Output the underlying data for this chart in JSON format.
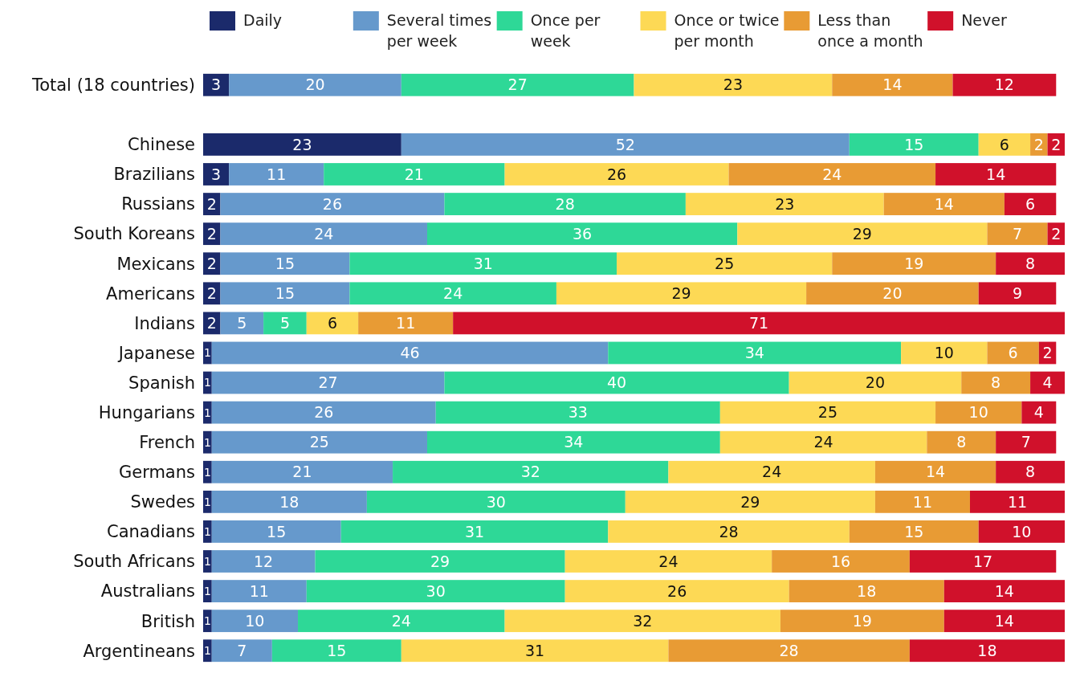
{
  "chart_data": {
    "type": "bar",
    "orientation": "horizontal",
    "stacked": true,
    "data_labels": true,
    "legend": "top",
    "categories": [
      "Total (18 countries)",
      null,
      "Chinese",
      "Brazilians",
      "Russians",
      "South Koreans",
      "Mexicans",
      "Americans",
      "Indians",
      "Japanese",
      "Spanish",
      "Hungarians",
      "French",
      "Germans",
      "Swedes",
      "Canadians",
      "South Africans",
      "Australians",
      "British",
      "Argentineans"
    ],
    "series": [
      {
        "name": "Daily",
        "color": "#1b2a6b",
        "values": [
          3,
          null,
          23,
          3,
          2,
          2,
          2,
          2,
          2,
          1,
          1,
          1,
          1,
          1,
          1,
          1,
          1,
          1,
          1,
          1
        ]
      },
      {
        "name": "Several times per week",
        "color": "#6699cc",
        "values": [
          20,
          null,
          52,
          11,
          26,
          24,
          15,
          15,
          5,
          46,
          27,
          26,
          25,
          21,
          18,
          15,
          12,
          11,
          10,
          7
        ]
      },
      {
        "name": "Once per week",
        "color": "#2ed897",
        "values": [
          27,
          null,
          15,
          21,
          28,
          36,
          31,
          24,
          5,
          34,
          40,
          33,
          34,
          32,
          30,
          31,
          29,
          30,
          24,
          15
        ]
      },
      {
        "name": "Once or twice per month",
        "color": "#fdd955",
        "values": [
          23,
          null,
          6,
          26,
          23,
          29,
          25,
          29,
          6,
          10,
          20,
          25,
          24,
          24,
          29,
          28,
          24,
          26,
          32,
          31
        ]
      },
      {
        "name": "Less than once a month",
        "color": "#e89b34",
        "values": [
          14,
          null,
          2,
          24,
          14,
          7,
          19,
          20,
          11,
          6,
          8,
          10,
          8,
          14,
          11,
          15,
          16,
          18,
          19,
          28
        ]
      },
      {
        "name": "Never",
        "color": "#d0112b",
        "values": [
          12,
          null,
          2,
          14,
          6,
          2,
          8,
          9,
          71,
          2,
          4,
          4,
          7,
          8,
          11,
          10,
          17,
          14,
          14,
          18
        ]
      }
    ]
  }
}
